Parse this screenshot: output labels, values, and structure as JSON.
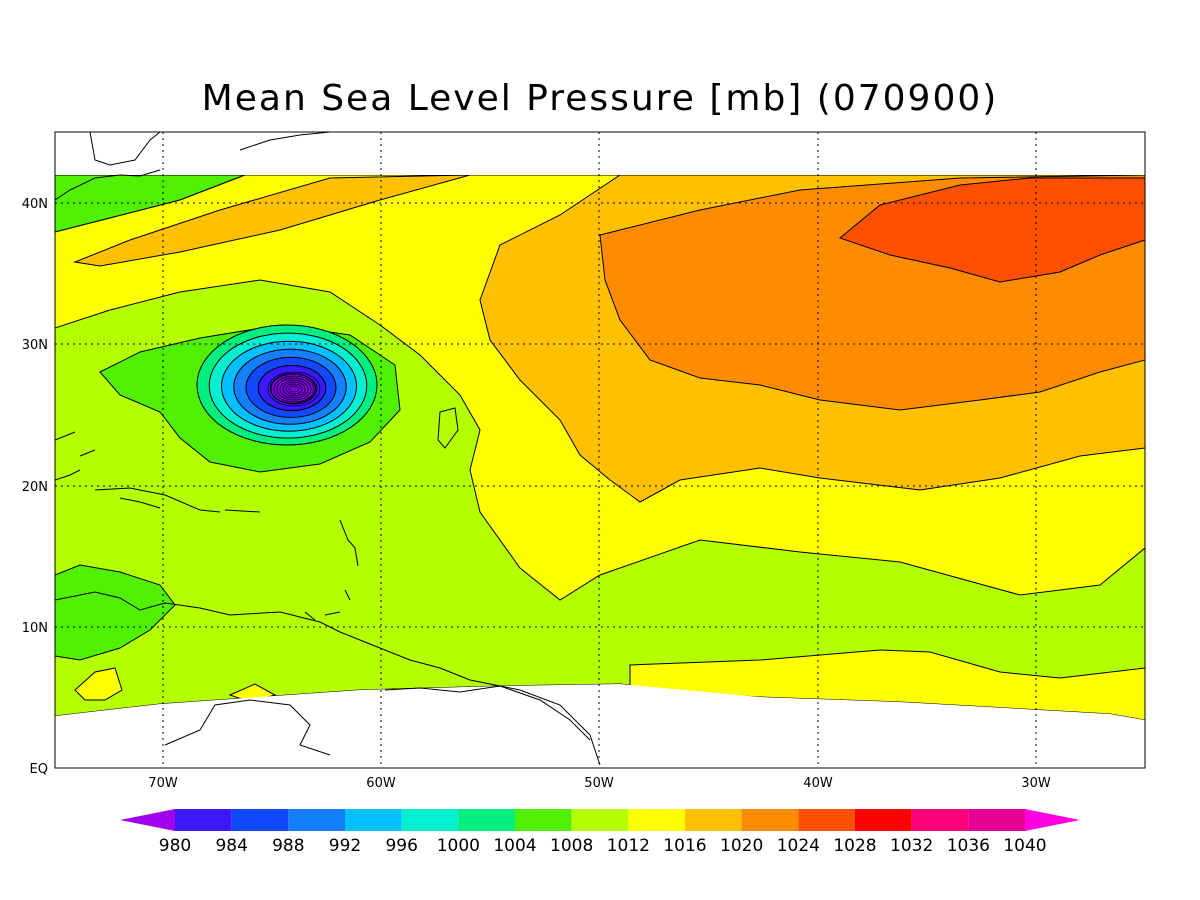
{
  "title": "Mean Sea Level Pressure [mb] (070900)",
  "lat_labels": [
    "40N",
    "30N",
    "20N",
    "10N",
    "EQ"
  ],
  "lon_labels": [
    "70W",
    "60W",
    "50W",
    "40W",
    "30W"
  ],
  "colorbar": {
    "values": [
      "980",
      "984",
      "988",
      "992",
      "996",
      "1000",
      "1004",
      "1008",
      "1012",
      "1016",
      "1020",
      "1024",
      "1028",
      "1032",
      "1036",
      "1040"
    ],
    "colors": [
      "#a000f0",
      "#3c18ff",
      "#1248ff",
      "#1480ff",
      "#00c0ff",
      "#00f0d0",
      "#00f080",
      "#50f000",
      "#b4ff00",
      "#ffff00",
      "#ffc000",
      "#ff8c00",
      "#ff5000",
      "#ff0000",
      "#ff0078",
      "#e80096",
      "#ff00e0"
    ]
  },
  "map_colors": {
    "c1004": "#50f000",
    "c1008": "#b4ff00",
    "c1012": "#ffff00",
    "c1016": "#ffc000",
    "c1020": "#ff8c00",
    "c1024": "#ff5000",
    "low_ring_colors": [
      "#00f080",
      "#00f0d0",
      "#00c0ff",
      "#1480ff",
      "#1248ff",
      "#3c18ff",
      "#7a00e0"
    ]
  }
}
